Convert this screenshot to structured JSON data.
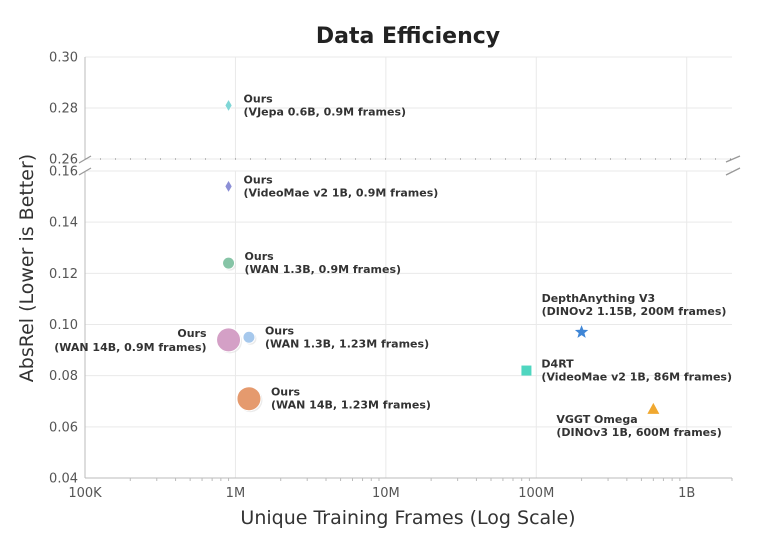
{
  "chart_data": {
    "type": "scatter",
    "title": "Data Efficiency",
    "xlabel": "Unique Training Frames (Log Scale)",
    "ylabel": "AbsRel (Lower is Better)",
    "x_scale": "log",
    "xlim": [
      100000,
      2000000000
    ],
    "x_ticks": [
      {
        "value": 100000,
        "label": "100K"
      },
      {
        "value": 1000000,
        "label": "1M"
      },
      {
        "value": 10000000,
        "label": "10M"
      },
      {
        "value": 100000000,
        "label": "100M"
      },
      {
        "value": 1000000000,
        "label": "1B"
      }
    ],
    "broken_y_axis": true,
    "ylim_upper": [
      0.26,
      0.3
    ],
    "ylim_lower": [
      0.04,
      0.16
    ],
    "y_ticks_upper": [
      "0.26",
      "0.28",
      "0.30"
    ],
    "y_ticks_lower": [
      "0.04",
      "0.06",
      "0.08",
      "0.10",
      "0.12",
      "0.14",
      "0.16"
    ],
    "grid": true,
    "points": [
      {
        "name": "Ours",
        "detail": "(VJepa 0.6B, 0.9M frames)",
        "x": 900000,
        "y": 0.281,
        "marker": "diamond",
        "color": "#7fd6d6",
        "size": "small",
        "label_side": "right"
      },
      {
        "name": "Ours",
        "detail": "(VideoMae v2 1B, 0.9M frames)",
        "x": 900000,
        "y": 0.154,
        "marker": "diamond",
        "color": "#8c8fd6",
        "size": "small",
        "label_side": "right"
      },
      {
        "name": "Ours",
        "detail": "(WAN 1.3B, 0.9M frames)",
        "x": 900000,
        "y": 0.124,
        "marker": "circle",
        "color": "#86c4a6",
        "size": "medium",
        "label_side": "right"
      },
      {
        "name": "Ours",
        "detail": "(WAN 14B, 0.9M frames)",
        "x": 900000,
        "y": 0.094,
        "marker": "circle",
        "color": "#d4a0c6",
        "size": "large",
        "label_side": "left"
      },
      {
        "name": "Ours",
        "detail": "(WAN 1.3B, 1.23M frames)",
        "x": 1230000,
        "y": 0.095,
        "marker": "circle",
        "color": "#a6c8ec",
        "size": "medium",
        "label_side": "right"
      },
      {
        "name": "Ours",
        "detail": "(WAN 14B, 1.23M frames)",
        "x": 1230000,
        "y": 0.071,
        "marker": "circle",
        "color": "#e59a6e",
        "size": "large",
        "label_side": "right"
      },
      {
        "name": "DepthAnything V3",
        "detail": "(DINOv2 1.15B, 200M frames)",
        "x": 200000000,
        "y": 0.097,
        "marker": "star",
        "color": "#3f86d6",
        "size": "small",
        "label_side": "above"
      },
      {
        "name": "D4RT",
        "detail": "(VideoMae v2 1B, 86M frames)",
        "x": 86000000,
        "y": 0.082,
        "marker": "square",
        "color": "#4fd6c0",
        "size": "small",
        "label_side": "right"
      },
      {
        "name": "VGGT Omega",
        "detail": "(DINOv3 1B, 600M frames)",
        "x": 600000000,
        "y": 0.067,
        "marker": "triangle",
        "color": "#f0a830",
        "size": "small",
        "label_side": "below-left"
      }
    ]
  }
}
